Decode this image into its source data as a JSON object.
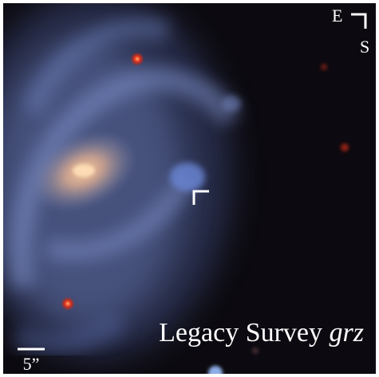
{
  "compass": {
    "east": "E",
    "south": "S"
  },
  "scale_bar": {
    "label": "5”"
  },
  "caption": {
    "text": "Legacy Survey",
    "filters": "grz"
  }
}
